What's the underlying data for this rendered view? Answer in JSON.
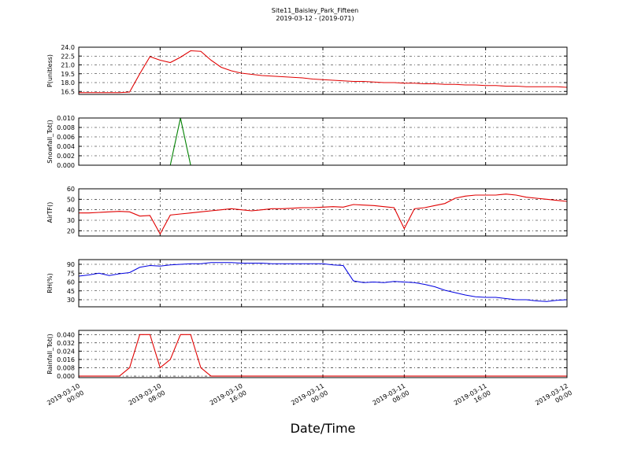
{
  "chart_data": {
    "type": "line",
    "title": "Site11_Baisley_Park_Fifteen",
    "subtitle": "2019-03-12 - (2019-071)",
    "x_label": "Date/Time",
    "xlim": [
      "2019-03-10 00:00",
      "2019-03-12 00:00"
    ],
    "xticks": [
      "2019-03-10 00:00",
      "2019-03-10 08:00",
      "2019-03-10 16:00",
      "2019-03-11 00:00",
      "2019-03-11 08:00",
      "2019-03-11 16:00",
      "2019-03-12 00:00"
    ],
    "grid": true,
    "x": [
      "2019-03-10 00:00",
      "2019-03-10 01:00",
      "2019-03-10 02:00",
      "2019-03-10 03:00",
      "2019-03-10 04:00",
      "2019-03-10 05:00",
      "2019-03-10 06:00",
      "2019-03-10 07:00",
      "2019-03-10 08:00",
      "2019-03-10 09:00",
      "2019-03-10 10:00",
      "2019-03-10 11:00",
      "2019-03-10 12:00",
      "2019-03-10 13:00",
      "2019-03-10 14:00",
      "2019-03-10 15:00",
      "2019-03-10 16:00",
      "2019-03-10 17:00",
      "2019-03-10 18:00",
      "2019-03-10 19:00",
      "2019-03-10 20:00",
      "2019-03-10 21:00",
      "2019-03-10 22:00",
      "2019-03-10 23:00",
      "2019-03-11 00:00",
      "2019-03-11 01:00",
      "2019-03-11 02:00",
      "2019-03-11 03:00",
      "2019-03-11 04:00",
      "2019-03-11 05:00",
      "2019-03-11 06:00",
      "2019-03-11 07:00",
      "2019-03-11 08:00",
      "2019-03-11 09:00",
      "2019-03-11 10:00",
      "2019-03-11 11:00",
      "2019-03-11 12:00",
      "2019-03-11 13:00",
      "2019-03-11 14:00",
      "2019-03-11 15:00",
      "2019-03-11 16:00",
      "2019-03-11 17:00",
      "2019-03-11 18:00",
      "2019-03-11 19:00",
      "2019-03-11 20:00",
      "2019-03-11 21:00",
      "2019-03-11 22:00",
      "2019-03-11 23:00",
      "2019-03-12 00:00"
    ],
    "panels": [
      {
        "y_label": "P(unitless)",
        "ylim": [
          16,
          24
        ],
        "yticks": [
          16.5,
          {
            "value": 18,
            "label": "18.0"
          },
          19.5,
          {
            "value": 21,
            "label": "21.0"
          },
          22.5,
          {
            "value": 24,
            "label": "24.0"
          }
        ],
        "series": [
          {
            "name": "P(unitless)",
            "color": "#e00000",
            "values": [
              16.3,
              16.3,
              16.3,
              16.3,
              16.3,
              16.4,
              19.5,
              22.4,
              21.8,
              21.4,
              22.3,
              23.4,
              23.3,
              21.8,
              20.6,
              20.0,
              19.6,
              19.4,
              19.2,
              19.1,
              19.0,
              18.9,
              18.8,
              18.6,
              18.5,
              18.4,
              18.3,
              18.2,
              18.2,
              18.1,
              18.0,
              18.0,
              17.9,
              17.9,
              17.8,
              17.8,
              17.7,
              17.7,
              17.6,
              17.6,
              17.5,
              17.5,
              17.4,
              17.4,
              17.3,
              17.3,
              17.3,
              17.3,
              17.2
            ]
          }
        ]
      },
      {
        "y_label": "Snowfall_Tot()",
        "ylim": [
          0,
          0.01
        ],
        "yticks": [
          {
            "value": 0,
            "label": "0.000"
          },
          {
            "value": 0.002,
            "label": "0.002"
          },
          {
            "value": 0.004,
            "label": "0.004"
          },
          {
            "value": 0.006,
            "label": "0.006"
          },
          {
            "value": 0.008,
            "label": "0.008"
          },
          {
            "value": 0.01,
            "label": "0.010"
          }
        ],
        "series": [
          {
            "name": "Snowfall_Tot()",
            "color": "#008000",
            "values": [
              0,
              0,
              0,
              0,
              0,
              0,
              0,
              0,
              0,
              0,
              0.01,
              0,
              0,
              0,
              0,
              0,
              0,
              0,
              0,
              0,
              0,
              0,
              0,
              0,
              0,
              0,
              0,
              0,
              0,
              0,
              0,
              0,
              0,
              0,
              0,
              0,
              0,
              0,
              0,
              0,
              0,
              0,
              0,
              0,
              0,
              0,
              0,
              0,
              0
            ]
          }
        ]
      },
      {
        "y_label": "AirTF()",
        "ylim": [
          15,
          60
        ],
        "yticks": [
          20,
          30,
          40,
          50,
          60
        ],
        "series": [
          {
            "name": "AirTF()",
            "color": "#e00000",
            "values": [
              37,
              37,
              37.5,
              38,
              38.5,
              38,
              34,
              34.5,
              17,
              35,
              36,
              37,
              38,
              39,
              40,
              41,
              40,
              39,
              40,
              41,
              41,
              41.5,
              42,
              42,
              42.5,
              43,
              42.5,
              45,
              44.5,
              44,
              43,
              42,
              22,
              41,
              42,
              44,
              46,
              51,
              53,
              54,
              54,
              54,
              55,
              54,
              52,
              51,
              50,
              49,
              48
            ]
          }
        ]
      },
      {
        "y_label": "RH(%)",
        "ylim": [
          18,
          98
        ],
        "yticks": [
          30,
          45,
          60,
          75,
          90
        ],
        "series": [
          {
            "name": "RH(%)",
            "color": "#0000e0",
            "values": [
              70,
              72,
              75,
              71,
              74,
              76,
              85,
              88,
              87,
              89,
              90,
              91,
              91,
              93,
              93,
              93,
              92,
              92,
              92,
              91,
              91,
              91,
              91,
              91,
              91,
              89,
              88,
              62,
              59,
              60,
              59,
              61,
              60,
              59,
              56,
              52,
              46,
              42,
              38,
              35,
              34,
              34,
              32,
              30,
              30,
              28,
              27,
              29,
              30
            ]
          }
        ]
      },
      {
        "y_label": "Rainfall_Tot()",
        "ylim": [
          -0.0015,
          0.044
        ],
        "yticks": [
          {
            "value": 0,
            "label": "0.000"
          },
          {
            "value": 0.008,
            "label": "0.008"
          },
          {
            "value": 0.016,
            "label": "0.016"
          },
          {
            "value": 0.024,
            "label": "0.024"
          },
          {
            "value": 0.032,
            "label": "0.032"
          },
          {
            "value": 0.04,
            "label": "0.040"
          }
        ],
        "series": [
          {
            "name": "Rainfall_Tot()",
            "color": "#e00000",
            "values": [
              0,
              0,
              0,
              0,
              0,
              0.008,
              0.04,
              0.04,
              0.008,
              0.016,
              0.04,
              0.04,
              0.008,
              0,
              0,
              0,
              0,
              0,
              0,
              0,
              0,
              0,
              0,
              0,
              0,
              0,
              0,
              0,
              0,
              0,
              0,
              0,
              0,
              0,
              0,
              0,
              0,
              0,
              0,
              0,
              0,
              0,
              0,
              0,
              0,
              0,
              0,
              0,
              0
            ]
          }
        ]
      }
    ]
  }
}
